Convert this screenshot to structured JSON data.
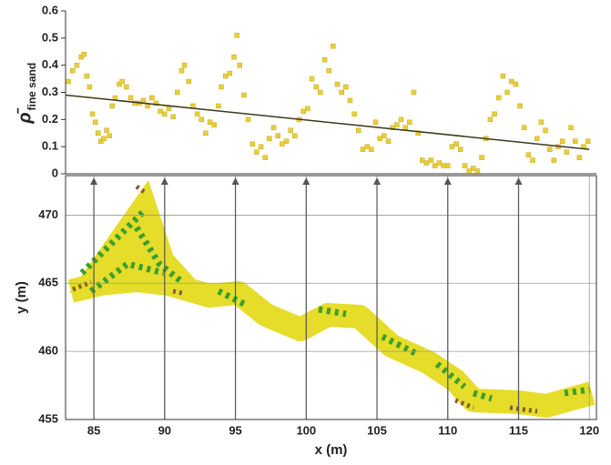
{
  "chart_data": [
    {
      "type": "scatter",
      "y_label": "ρ̄",
      "y_label_subscript": "fine sand",
      "xlim": [
        83,
        120.5
      ],
      "ylim": [
        0,
        0.6
      ],
      "yticks": [
        0,
        0.1,
        0.2,
        0.3,
        0.4,
        0.5,
        0.6
      ],
      "points": {
        "color": "#e8cf3c",
        "x": [
          83.2,
          83.5,
          83.8,
          84.1,
          84.3,
          84.5,
          84.7,
          84.9,
          85.1,
          85.3,
          85.5,
          85.7,
          85.9,
          86.1,
          86.3,
          86.5,
          86.8,
          87.0,
          87.3,
          87.6,
          87.9,
          88.2,
          88.5,
          88.8,
          89.1,
          89.4,
          89.7,
          90.0,
          90.3,
          90.6,
          90.9,
          91.2,
          91.4,
          91.7,
          92.0,
          92.3,
          92.6,
          92.9,
          93.2,
          93.5,
          93.8,
          94.0,
          94.3,
          94.6,
          94.9,
          95.1,
          95.3,
          95.6,
          95.9,
          96.2,
          96.5,
          96.8,
          97.1,
          97.4,
          97.7,
          98.0,
          98.3,
          98.6,
          98.9,
          99.2,
          99.5,
          99.8,
          100.1,
          100.4,
          100.7,
          101.0,
          101.3,
          101.6,
          101.9,
          102.2,
          102.5,
          102.8,
          103.1,
          103.4,
          103.7,
          104.0,
          104.3,
          104.6,
          104.9,
          105.2,
          105.5,
          105.8,
          106.1,
          106.4,
          106.7,
          107.0,
          107.3,
          107.6,
          107.9,
          108.2,
          108.5,
          108.8,
          109.1,
          109.4,
          109.7,
          110.0,
          110.3,
          110.6,
          110.9,
          111.2,
          111.5,
          111.8,
          112.1,
          112.4,
          112.7,
          113.0,
          113.3,
          113.6,
          113.9,
          114.2,
          114.5,
          114.8,
          115.1,
          115.4,
          115.7,
          116.0,
          116.3,
          116.6,
          116.9,
          117.2,
          117.5,
          117.8,
          118.1,
          118.4,
          118.7,
          119.0,
          119.3,
          119.6,
          119.9
        ],
        "values": [
          0.34,
          0.38,
          0.4,
          0.43,
          0.44,
          0.36,
          0.32,
          0.22,
          0.19,
          0.15,
          0.12,
          0.13,
          0.16,
          0.14,
          0.25,
          0.28,
          0.33,
          0.34,
          0.32,
          0.28,
          0.26,
          0.26,
          0.27,
          0.25,
          0.28,
          0.26,
          0.23,
          0.22,
          0.24,
          0.21,
          0.3,
          0.38,
          0.4,
          0.34,
          0.25,
          0.22,
          0.2,
          0.15,
          0.19,
          0.18,
          0.25,
          0.32,
          0.36,
          0.37,
          0.43,
          0.51,
          0.4,
          0.29,
          0.2,
          0.11,
          0.08,
          0.1,
          0.06,
          0.13,
          0.17,
          0.14,
          0.11,
          0.12,
          0.16,
          0.14,
          0.2,
          0.23,
          0.24,
          0.35,
          0.32,
          0.3,
          0.42,
          0.38,
          0.47,
          0.33,
          0.3,
          0.32,
          0.27,
          0.22,
          0.16,
          0.09,
          0.1,
          0.09,
          0.19,
          0.13,
          0.14,
          0.12,
          0.17,
          0.18,
          0.2,
          0.17,
          0.19,
          0.3,
          0.15,
          0.05,
          0.04,
          0.05,
          0.03,
          0.04,
          0.03,
          0.03,
          0.1,
          0.11,
          0.09,
          0.03,
          0.01,
          0.02,
          0.01,
          0.06,
          0.13,
          0.2,
          0.22,
          0.28,
          0.36,
          0.3,
          0.34,
          0.33,
          0.25,
          0.17,
          0.07,
          0.05,
          0.13,
          0.19,
          0.16,
          0.09,
          0.05,
          0.1,
          0.12,
          0.08,
          0.17,
          0.12,
          0.06,
          0.1,
          0.12
        ]
      },
      "trend_line": {
        "color": "#3a3a1a",
        "x": [
          83,
          120
        ],
        "values": [
          0.29,
          0.09
        ]
      }
    },
    {
      "type": "map",
      "x_label": "x (m)",
      "y_label": "y (m)",
      "xlim": [
        83,
        120.5
      ],
      "ylim": [
        455,
        472.9
      ],
      "xticks": [
        85,
        90,
        95,
        100,
        105,
        110,
        115,
        120
      ],
      "yticks": [
        455,
        460,
        465,
        470
      ],
      "grid": true
    }
  ]
}
